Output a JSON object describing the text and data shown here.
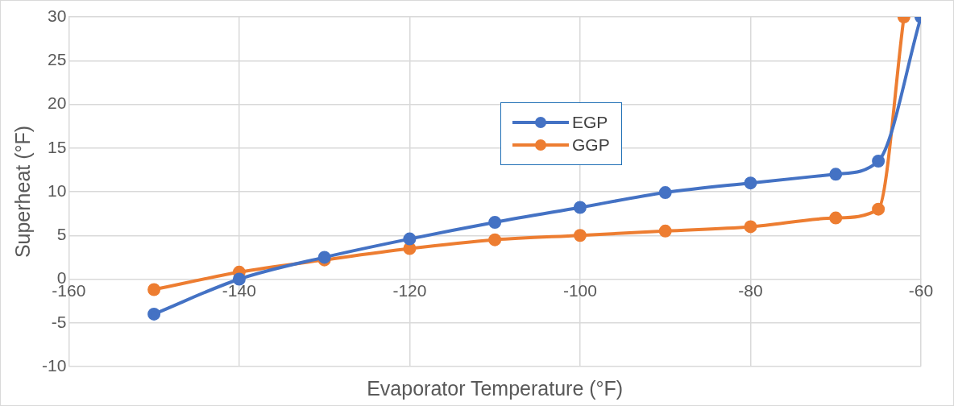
{
  "chart_data": {
    "type": "line",
    "xlabel": "Evaporator Temperature (°F)",
    "ylabel": "Superheat (°F)",
    "xlim": [
      -160,
      -60
    ],
    "xticks": [
      -160,
      -140,
      -120,
      -100,
      -80,
      -60
    ],
    "ylim": [
      -10,
      30
    ],
    "yticks": [
      -10,
      -5,
      0,
      5,
      10,
      15,
      20,
      25,
      30
    ],
    "grid": true,
    "legend": "top",
    "marker": "circle",
    "line_style": "solid",
    "series": [
      {
        "name": "EGP",
        "color": "#4472c4",
        "x": [
          -150,
          -140,
          -130,
          -120,
          -110,
          -100,
          -90,
          -80,
          -70,
          -65,
          -60
        ],
        "values": [
          -4,
          0,
          2.5,
          4.6,
          6.5,
          8.2,
          9.9,
          11,
          12,
          13.5,
          30
        ]
      },
      {
        "name": "GGP",
        "color": "#ed7d31",
        "x": [
          -150,
          -140,
          -130,
          -120,
          -110,
          -100,
          -90,
          -80,
          -70,
          -65,
          -62
        ],
        "values": [
          -1.2,
          0.8,
          2.2,
          3.5,
          4.5,
          5,
          5.5,
          6,
          7,
          8,
          30
        ]
      }
    ]
  }
}
